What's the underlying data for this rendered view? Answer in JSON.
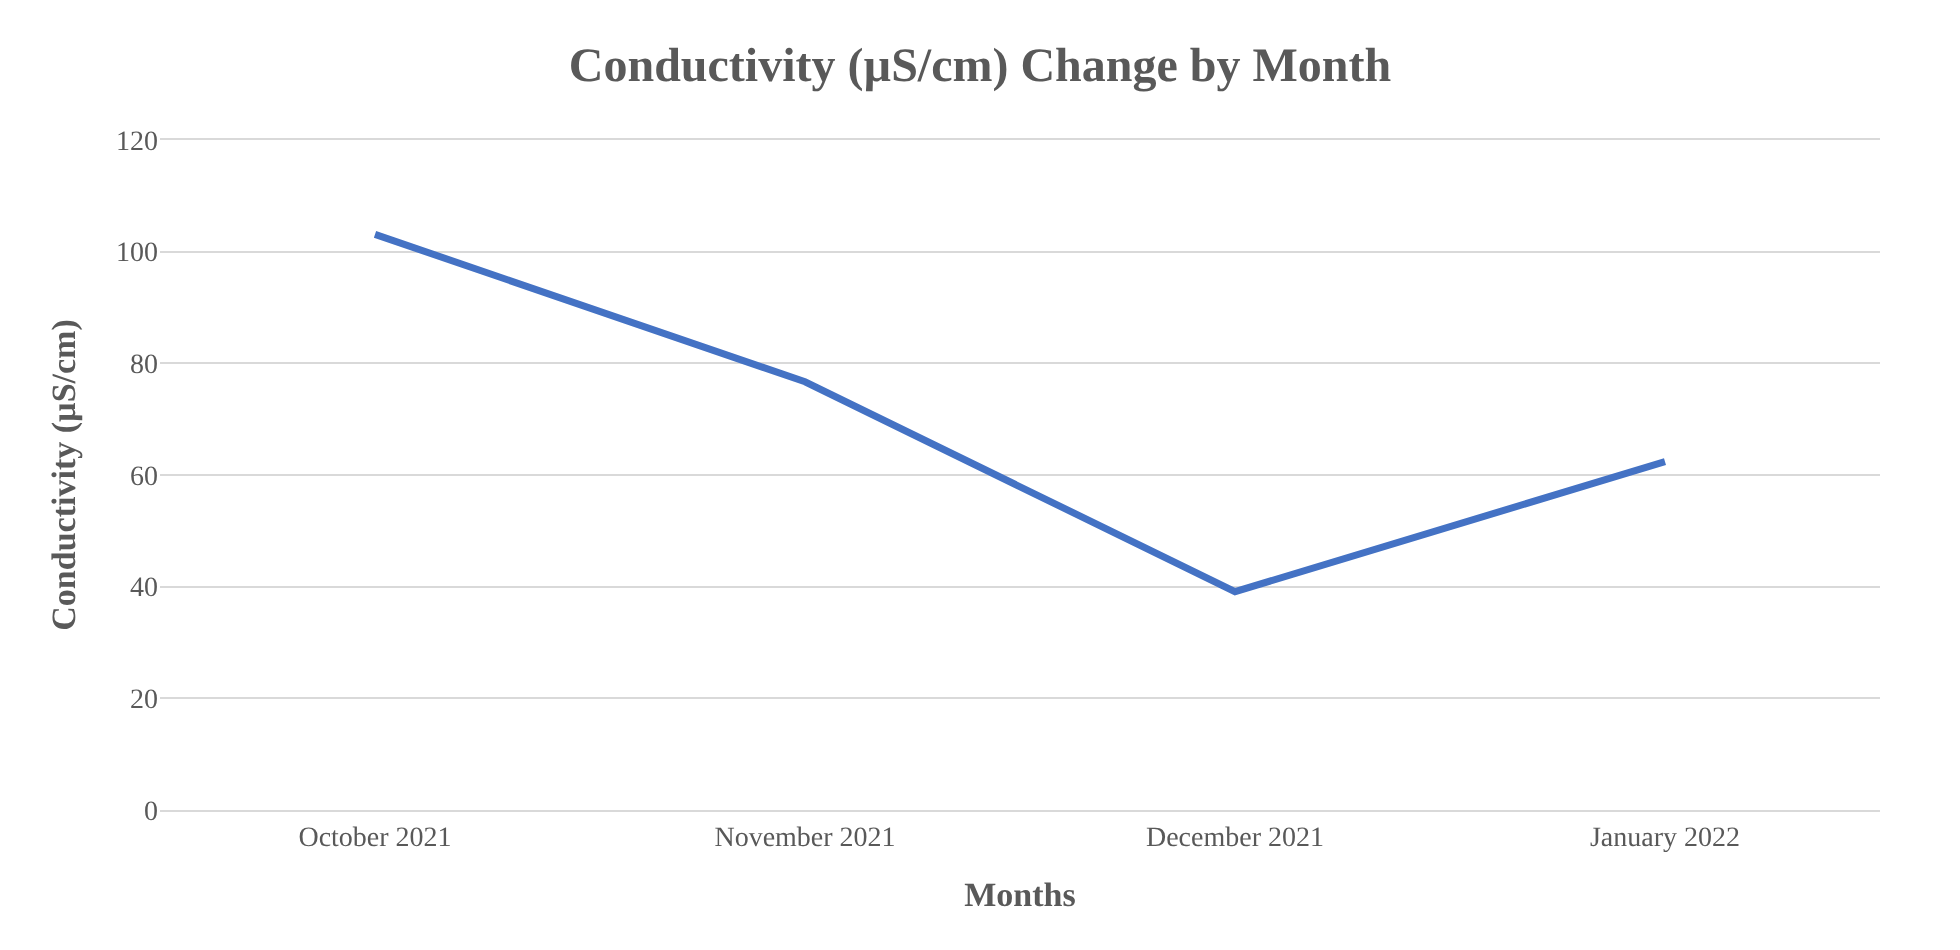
{
  "chart_data": {
    "type": "line",
    "title": "Conductivity (µS/cm) Change by Month",
    "xlabel": "Months",
    "ylabel": "Conductivity (µS/cm)",
    "categories": [
      "October 2021",
      "November 2021",
      "December 2021",
      "January 2022"
    ],
    "series": [
      {
        "color": "#4472c4",
        "values": [
          103.1,
          76.7,
          39.1,
          62.4
        ]
      }
    ],
    "ylim": [
      0,
      120
    ],
    "yticks": [
      0,
      20,
      40,
      60,
      80,
      100,
      120
    ],
    "grid": "y",
    "marker": "none",
    "line_style": "solid"
  }
}
